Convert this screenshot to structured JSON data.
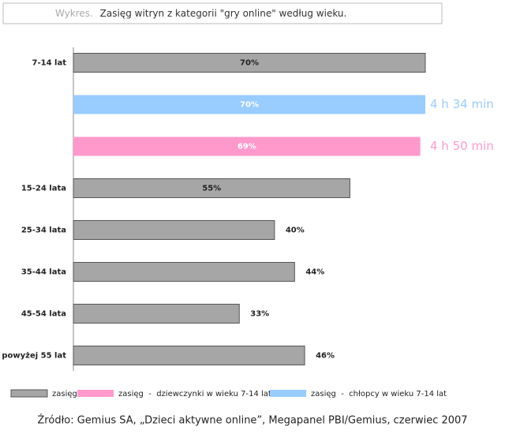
{
  "chart_data": {
    "type": "bar",
    "title_prefix": "Wykres.",
    "title": "Zasięg witryn z kategorii \"gry online\" według wieku.",
    "categories": [
      "7-14 lat",
      null,
      null,
      "15-24 lata",
      "25-34 lata",
      "35-44 lata",
      "45-54 lata",
      "powyżej 55 lat"
    ],
    "xlim": [
      0,
      70
    ],
    "series": [
      {
        "name": "zasięg",
        "color": "#a6a6a6",
        "values": [
          70,
          null,
          null,
          55,
          40,
          44,
          33,
          46
        ],
        "value_labels": [
          "70%",
          null,
          null,
          "55%",
          "40%",
          "44%",
          "33%",
          "46%"
        ]
      },
      {
        "name": "zasięg  -  dziewczynki w wieku 7-14 lat",
        "color": "#ff99cc",
        "values": [
          null,
          null,
          69,
          null,
          null,
          null,
          null,
          null
        ],
        "value_labels": [
          null,
          null,
          "69%",
          null,
          null,
          null,
          null,
          null
        ]
      },
      {
        "name": "zasięg  -  chłopcy w wieku 7-14 lat",
        "color": "#99ccff",
        "values": [
          null,
          70,
          null,
          null,
          null,
          null,
          null,
          null
        ],
        "value_labels": [
          null,
          "70%",
          null,
          null,
          null,
          null,
          null,
          null
        ]
      }
    ],
    "annotations": [
      {
        "row": 1,
        "series": 2,
        "text": "4 h 34 min"
      },
      {
        "row": 2,
        "series": 1,
        "text": "4 h 50 min"
      }
    ],
    "source": "Źródło: Gemius SA, „Dzieci aktywne online”, Megapanel PBI/Gemius, czerwiec 2007"
  }
}
